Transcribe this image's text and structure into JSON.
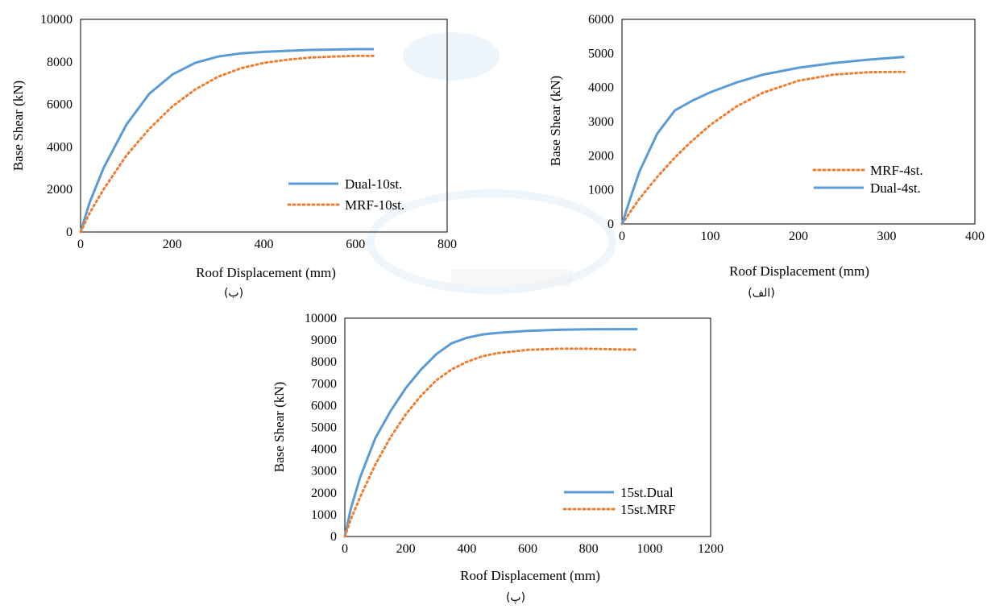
{
  "chart_data": [
    {
      "type": "line",
      "caption": "(ب)",
      "xlabel": "Roof Displacement (mm)",
      "ylabel": "Base Shear (kN)",
      "xlim": [
        0,
        800
      ],
      "ylim": [
        0,
        10000
      ],
      "xticks": [
        0,
        200,
        400,
        600,
        800
      ],
      "yticks": [
        0,
        2000,
        4000,
        6000,
        8000,
        10000
      ],
      "grid": false,
      "legend_position": "bottom-right",
      "series": [
        {
          "name": "Dual-10st.",
          "color": "#5b9bd5",
          "style": "solid",
          "x": [
            0,
            20,
            50,
            100,
            150,
            200,
            250,
            300,
            350,
            400,
            450,
            500,
            550,
            600,
            640
          ],
          "y": [
            0,
            1400,
            3000,
            5050,
            6500,
            7400,
            7950,
            8250,
            8400,
            8470,
            8520,
            8560,
            8580,
            8600,
            8600
          ]
        },
        {
          "name": "MRF-10st.",
          "color": "#ed7d31",
          "style": "dotted",
          "x": [
            0,
            20,
            50,
            100,
            150,
            200,
            250,
            300,
            350,
            400,
            450,
            500,
            550,
            600,
            640
          ],
          "y": [
            0,
            900,
            2000,
            3600,
            4850,
            5900,
            6700,
            7300,
            7700,
            7950,
            8100,
            8200,
            8250,
            8280,
            8280
          ]
        }
      ]
    },
    {
      "type": "line",
      "caption": "(الف)",
      "xlabel": "Roof Displacement (mm)",
      "ylabel": "Base Shear (kN)",
      "xlim": [
        0,
        400
      ],
      "ylim": [
        0,
        6000
      ],
      "xticks": [
        0,
        100,
        200,
        300,
        400
      ],
      "yticks": [
        0,
        1000,
        2000,
        3000,
        4000,
        5000,
        6000
      ],
      "grid": false,
      "legend_position": "bottom-right",
      "series": [
        {
          "name": "MRF-4st.",
          "color": "#ed7d31",
          "style": "dotted",
          "x": [
            0,
            10,
            20,
            40,
            60,
            80,
            100,
            130,
            160,
            200,
            240,
            280,
            320
          ],
          "y": [
            0,
            380,
            750,
            1380,
            1950,
            2450,
            2900,
            3450,
            3850,
            4200,
            4380,
            4450,
            4460
          ]
        },
        {
          "name": "Dual-4st.",
          "color": "#5b9bd5",
          "style": "solid",
          "x": [
            0,
            10,
            20,
            40,
            60,
            80,
            100,
            130,
            160,
            200,
            240,
            280,
            320
          ],
          "y": [
            0,
            800,
            1550,
            2650,
            3330,
            3620,
            3860,
            4150,
            4380,
            4580,
            4720,
            4820,
            4900
          ]
        }
      ]
    },
    {
      "type": "line",
      "caption": "(پ)",
      "xlabel": "Roof Displacement (mm)",
      "ylabel": "Base Shear (kN)",
      "xlim": [
        0,
        1200
      ],
      "ylim": [
        0,
        10000
      ],
      "xticks": [
        0,
        200,
        400,
        600,
        800,
        1000,
        1200
      ],
      "yticks": [
        0,
        1000,
        2000,
        3000,
        4000,
        5000,
        6000,
        7000,
        8000,
        9000,
        10000
      ],
      "grid": false,
      "legend_position": "bottom-right",
      "series": [
        {
          "name": "15st.Dual",
          "color": "#5b9bd5",
          "style": "solid",
          "x": [
            0,
            20,
            50,
            100,
            150,
            200,
            250,
            300,
            350,
            400,
            450,
            500,
            600,
            700,
            800,
            900,
            960
          ],
          "y": [
            0,
            1300,
            2700,
            4500,
            5750,
            6800,
            7650,
            8350,
            8850,
            9100,
            9250,
            9330,
            9420,
            9470,
            9490,
            9500,
            9500
          ]
        },
        {
          "name": "15st.MRF",
          "color": "#ed7d31",
          "style": "dotted",
          "x": [
            0,
            20,
            50,
            100,
            150,
            200,
            250,
            300,
            350,
            400,
            450,
            500,
            600,
            700,
            800,
            900,
            960
          ],
          "y": [
            0,
            800,
            1800,
            3300,
            4550,
            5600,
            6450,
            7150,
            7650,
            8000,
            8250,
            8400,
            8550,
            8600,
            8600,
            8570,
            8560
          ]
        }
      ]
    }
  ]
}
